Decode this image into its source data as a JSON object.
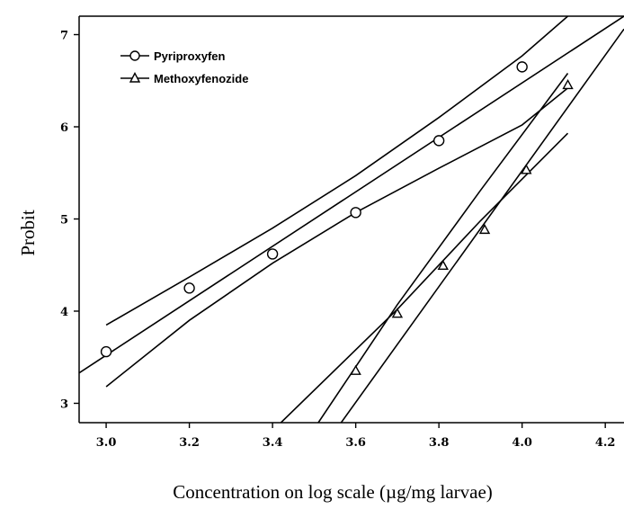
{
  "chart_data": {
    "type": "scatter",
    "xlabel": "Concentration on log scale (µg/mg larvae)",
    "ylabel": "Probit",
    "xlim": [
      2.935,
      4.245
    ],
    "ylim": [
      2.79,
      7.2
    ],
    "x_ticks": [
      3.0,
      3.2,
      3.4,
      3.6,
      3.8,
      4.0,
      4.2
    ],
    "y_ticks": [
      3,
      4,
      5,
      6,
      7
    ],
    "x_tick_labels": [
      "3.0",
      "3.2",
      "3.4",
      "3.6",
      "3.8",
      "4.0",
      "4.2"
    ],
    "y_tick_labels": [
      "3",
      "4",
      "5",
      "6",
      "7"
    ],
    "legend_position": "top-left",
    "grid": false,
    "series": [
      {
        "name": "Pyriproxyfen",
        "marker": "circle",
        "points": [
          {
            "x": 3.0,
            "y": 3.56
          },
          {
            "x": 3.2,
            "y": 4.25
          },
          {
            "x": 3.4,
            "y": 4.62
          },
          {
            "x": 3.6,
            "y": 5.07
          },
          {
            "x": 3.8,
            "y": 5.85
          },
          {
            "x": 4.0,
            "y": 6.65
          }
        ],
        "fit_line": [
          {
            "x": 2.935,
            "y": 3.33
          },
          {
            "x": 4.245,
            "y": 7.2
          }
        ],
        "upper_bound": [
          {
            "x": 3.0,
            "y": 3.85
          },
          {
            "x": 3.2,
            "y": 4.37
          },
          {
            "x": 3.4,
            "y": 4.9
          },
          {
            "x": 3.6,
            "y": 5.47
          },
          {
            "x": 3.8,
            "y": 6.1
          },
          {
            "x": 4.0,
            "y": 6.77
          },
          {
            "x": 4.11,
            "y": 7.2
          }
        ],
        "lower_bound": [
          {
            "x": 3.0,
            "y": 3.18
          },
          {
            "x": 3.2,
            "y": 3.9
          },
          {
            "x": 3.4,
            "y": 4.52
          },
          {
            "x": 3.6,
            "y": 5.07
          },
          {
            "x": 3.8,
            "y": 5.55
          },
          {
            "x": 4.0,
            "y": 6.02
          },
          {
            "x": 4.11,
            "y": 6.42
          }
        ]
      },
      {
        "name": "Methoxyfenozide",
        "marker": "triangle",
        "points": [
          {
            "x": 3.6,
            "y": 3.35
          },
          {
            "x": 3.7,
            "y": 3.97
          },
          {
            "x": 3.81,
            "y": 4.49
          },
          {
            "x": 3.91,
            "y": 4.88
          },
          {
            "x": 4.01,
            "y": 5.53
          },
          {
            "x": 4.11,
            "y": 6.45
          }
        ],
        "fit_line": [
          {
            "x": 3.565,
            "y": 2.79
          },
          {
            "x": 4.245,
            "y": 7.06
          }
        ],
        "upper_bound": [
          {
            "x": 3.51,
            "y": 2.79
          },
          {
            "x": 3.7,
            "y": 4.07
          },
          {
            "x": 3.9,
            "y": 5.31
          },
          {
            "x": 4.11,
            "y": 6.58
          }
        ],
        "lower_bound": [
          {
            "x": 3.42,
            "y": 2.79
          },
          {
            "x": 3.7,
            "y": 4.02
          },
          {
            "x": 3.9,
            "y": 4.98
          },
          {
            "x": 4.11,
            "y": 5.93
          }
        ]
      }
    ]
  }
}
